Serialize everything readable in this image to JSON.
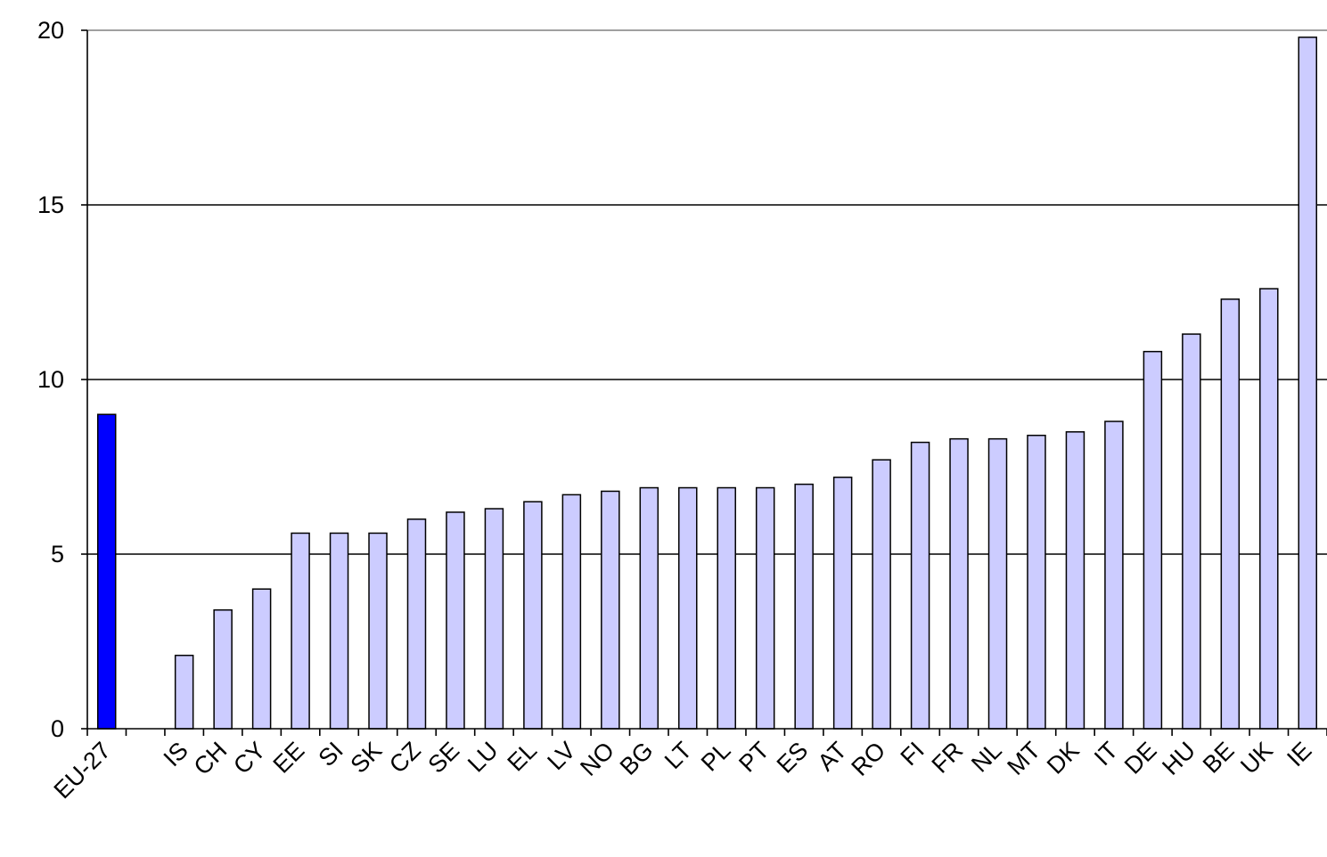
{
  "chart_data": {
    "type": "bar",
    "title": "",
    "xlabel": "",
    "ylabel": "",
    "ylim": [
      0,
      20
    ],
    "yticks": [
      0,
      5,
      10,
      15,
      20
    ],
    "grid": true,
    "legend": "none",
    "categories": [
      "EU-27",
      "",
      "IS",
      "CH",
      "CY",
      "EE",
      "SI",
      "SK",
      "CZ",
      "SE",
      "LU",
      "EL",
      "LV",
      "NO",
      "BG",
      "LT",
      "PL",
      "PT",
      "ES",
      "AT",
      "RO",
      "FI",
      "FR",
      "NL",
      "MT",
      "DK",
      "IT",
      "DE",
      "HU",
      "BE",
      "UK",
      "IE"
    ],
    "values": [
      9.0,
      null,
      2.1,
      3.4,
      4.0,
      5.6,
      5.6,
      5.6,
      6.0,
      6.2,
      6.3,
      6.5,
      6.7,
      6.8,
      6.9,
      6.9,
      6.9,
      6.9,
      7.0,
      7.2,
      7.7,
      8.2,
      8.3,
      8.3,
      8.4,
      8.5,
      8.8,
      10.8,
      11.3,
      12.3,
      12.6,
      19.8
    ],
    "colors": {
      "highlight": "#0000ff",
      "default": "#ccccff",
      "outline": "#000000"
    },
    "highlight_category": "EU-27"
  }
}
